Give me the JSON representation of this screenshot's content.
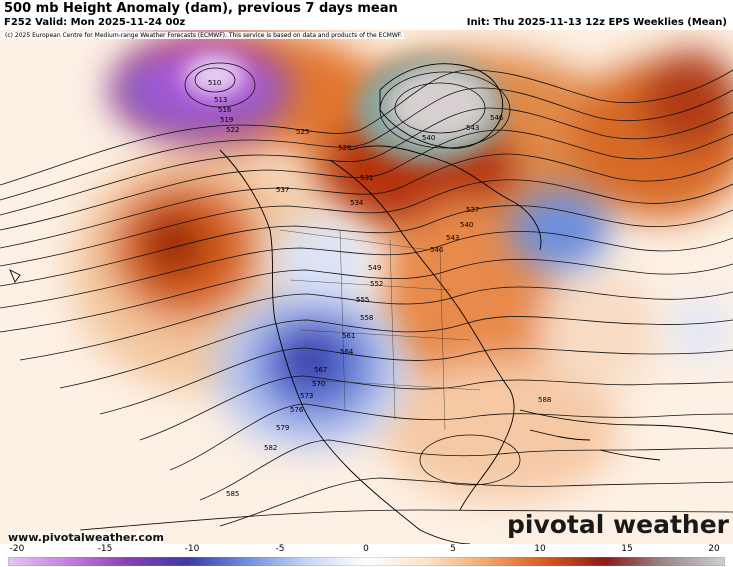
{
  "header": {
    "title": "500 mb Height Anomaly (dam), previous 7 days mean",
    "valid": "F252 Valid: Mon 2025-11-24 00z",
    "init": "Init: Thu 2025-11-13 12z EPS Weeklies (Mean)"
  },
  "copyright": "(c) 2025 European Centre for Medium-range Weather Forecasts (ECMWF). This service is based on data and products of the ECMWF.",
  "footer": {
    "site_url": "www.pivotalweather.com",
    "brand": "pivotal weather"
  },
  "colorbar": {
    "ticks": [
      "-20",
      "-15",
      "-10",
      "-5",
      "0",
      "5",
      "10",
      "15",
      "20"
    ],
    "colors": [
      "#e6c5f5",
      "#c77ee0",
      "#8a3fb8",
      "#3b3ba8",
      "#6e8fe0",
      "#c7d6f5",
      "#ffffff",
      "#fde3cc",
      "#f4a66a",
      "#d95a1c",
      "#8b1a1a",
      "#9a8a8a",
      "#cfcfcf"
    ]
  },
  "contours": {
    "labels": [
      "510",
      "513",
      "516",
      "519",
      "522",
      "525",
      "528",
      "531",
      "534",
      "537",
      "540",
      "543",
      "546",
      "549",
      "552",
      "555",
      "558",
      "561",
      "564",
      "567",
      "570",
      "573",
      "576",
      "579",
      "582",
      "585",
      "588",
      "537",
      "540",
      "543",
      "546"
    ]
  }
}
